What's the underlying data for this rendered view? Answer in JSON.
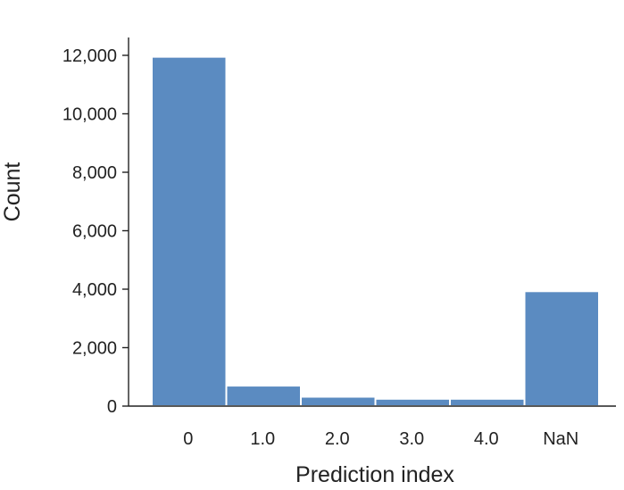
{
  "chart_data": {
    "type": "bar",
    "categories": [
      "0",
      "1.0",
      "2.0",
      "3.0",
      "4.0",
      "NaN"
    ],
    "values": [
      11950,
      700,
      320,
      250,
      250,
      3930
    ],
    "title": "",
    "xlabel": "Prediction index",
    "ylabel": "Count",
    "ylim": [
      0,
      12000
    ],
    "yticks": [
      0,
      2000,
      4000,
      6000,
      8000,
      10000,
      12000
    ],
    "ytick_labels": [
      "0",
      "2,000",
      "4,000",
      "6,000",
      "8,000",
      "10,000",
      "12,000"
    ],
    "grid": false,
    "legend": "none",
    "bar_color": "#5b8bc1"
  }
}
